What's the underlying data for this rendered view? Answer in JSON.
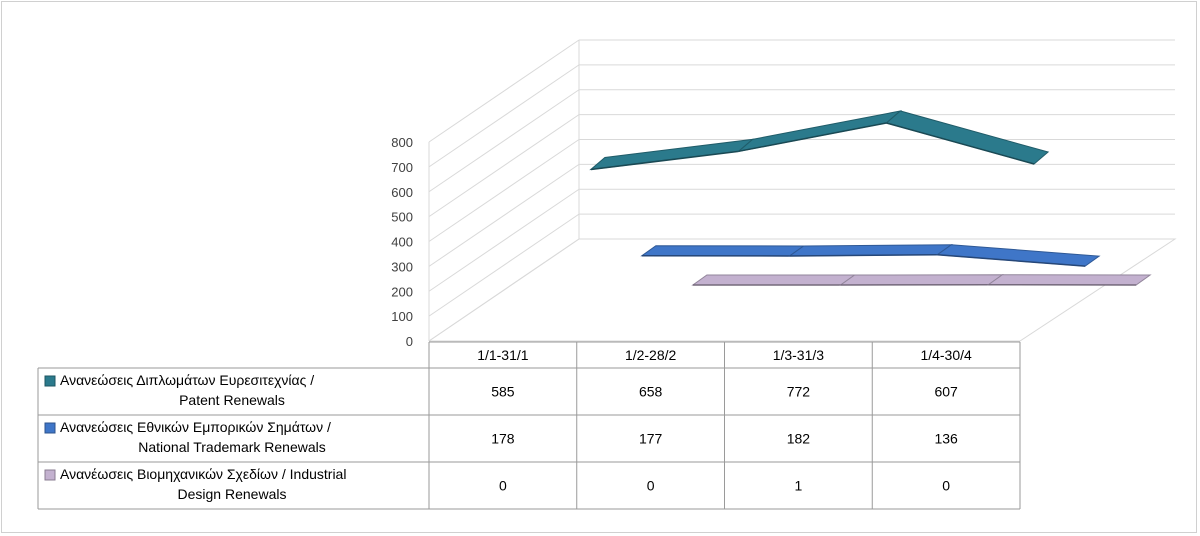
{
  "chart_data": {
    "type": "line",
    "style": "3d-line-with-data-table",
    "categories": [
      "1/1-31/1",
      "1/2-28/2",
      "1/3-31/3",
      "1/4-30/4"
    ],
    "series": [
      {
        "name_lines": [
          "Ανανεώσεις Διπλωμάτων Ευρεσιτεχνίας  /",
          "Patent Renewals"
        ],
        "values": [
          585,
          658,
          772,
          607
        ],
        "color": "#2b7a8c"
      },
      {
        "name_lines": [
          "Ανανεώσεις Εθνικών Εμπορικών Σημάτων /",
          "National Trademark Renewals"
        ],
        "values": [
          178,
          177,
          182,
          136
        ],
        "color": "#3f76c8"
      },
      {
        "name_lines": [
          "Ανανέωσεις Βιομηχανικών Σχεδίων / Industrial",
          "Design Renewals"
        ],
        "values": [
          0,
          0,
          1,
          0
        ],
        "color": "#c3b1cf"
      }
    ],
    "yticks": [
      "0",
      "100",
      "200",
      "300",
      "400",
      "500",
      "600",
      "700",
      "800"
    ],
    "ylim": [
      0,
      800
    ],
    "grid": true,
    "legend": "data-table"
  }
}
